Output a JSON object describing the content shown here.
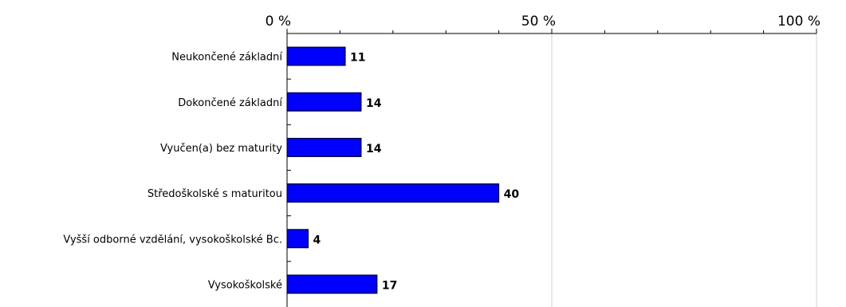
{
  "chart_data": {
    "type": "bar",
    "orientation": "horizontal",
    "categories": [
      "Neukončené základní",
      "Dokončené základní",
      "Vyučen(a) bez maturity",
      "Středoškolské s maturitou",
      "Vyšší odborné vzdělání, vysokoškolské Bc.",
      "Vysokoškolské"
    ],
    "values": [
      11,
      14,
      14,
      40,
      4,
      17
    ],
    "x_ticks": [
      "0 %",
      "50 %",
      "100 %"
    ],
    "xlim": [
      0,
      100
    ],
    "axis_position": "top",
    "grid": true,
    "bar_color": "#0000ff",
    "bar_border_color": "#000000",
    "grid_color": "#d0d0d0",
    "title": "",
    "xlabel": "",
    "ylabel": ""
  }
}
